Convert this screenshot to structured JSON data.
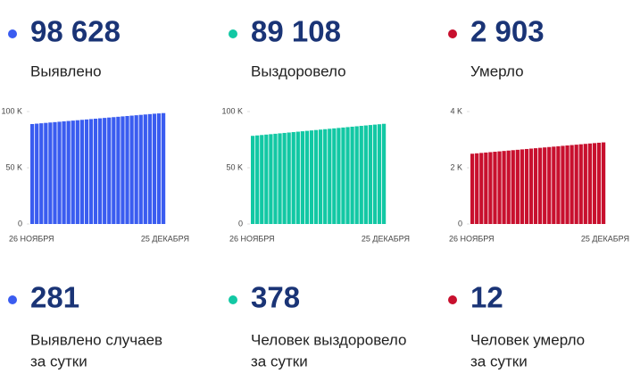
{
  "summary": [
    {
      "value": "98 628",
      "label": "Выявлено",
      "color": "#3a5cf0"
    },
    {
      "value": "89 108",
      "label": "Выздоровело",
      "color": "#12c8a4"
    },
    {
      "value": "2 903",
      "label": "Умерло",
      "color": "#c8102e"
    }
  ],
  "chart_data": [
    {
      "type": "bar",
      "color": "#3a5cf0",
      "categories": [
        "26 НОЯБРЯ",
        null,
        null,
        null,
        null,
        null,
        null,
        null,
        null,
        null,
        null,
        null,
        null,
        null,
        null,
        null,
        null,
        null,
        null,
        null,
        null,
        null,
        null,
        null,
        null,
        null,
        null,
        null,
        null,
        "25 ДЕКАБРЯ"
      ],
      "values": [
        88900,
        89240,
        89580,
        89920,
        90260,
        90600,
        90940,
        91280,
        91620,
        91960,
        92300,
        92640,
        92980,
        93320,
        93660,
        94000,
        94340,
        94680,
        95020,
        95360,
        95700,
        96040,
        96380,
        96720,
        97060,
        97400,
        97740,
        98080,
        98347,
        98628
      ],
      "ylim": [
        0,
        100000
      ],
      "yticks": [
        0,
        {
          "value": 50000,
          "label": "50 K"
        },
        {
          "value": 100000,
          "label": "100 K"
        }
      ]
    },
    {
      "type": "bar",
      "color": "#12c8a4",
      "categories": [
        "26 НОЯБРЯ",
        null,
        null,
        null,
        null,
        null,
        null,
        null,
        null,
        null,
        null,
        null,
        null,
        null,
        null,
        null,
        null,
        null,
        null,
        null,
        null,
        null,
        null,
        null,
        null,
        null,
        null,
        null,
        null,
        "25 ДЕКАБРЯ"
      ],
      "values": [
        78400,
        78770,
        79140,
        79510,
        79880,
        80250,
        80620,
        80990,
        81360,
        81730,
        82100,
        82470,
        82840,
        83210,
        83580,
        83950,
        84320,
        84690,
        85060,
        85430,
        85800,
        86170,
        86540,
        86910,
        87280,
        87650,
        88020,
        88390,
        88730,
        89108
      ],
      "ylim": [
        0,
        100000
      ],
      "yticks": [
        0,
        {
          "value": 50000,
          "label": "50 K"
        },
        {
          "value": 100000,
          "label": "100 K"
        }
      ]
    },
    {
      "type": "bar",
      "color": "#c8102e",
      "categories": [
        "26 НОЯБРЯ",
        null,
        null,
        null,
        null,
        null,
        null,
        null,
        null,
        null,
        null,
        null,
        null,
        null,
        null,
        null,
        null,
        null,
        null,
        null,
        null,
        null,
        null,
        null,
        null,
        null,
        null,
        null,
        null,
        "25 ДЕКАБРЯ"
      ],
      "values": [
        2500,
        2514,
        2528,
        2542,
        2556,
        2570,
        2584,
        2598,
        2612,
        2626,
        2640,
        2654,
        2668,
        2682,
        2696,
        2710,
        2724,
        2738,
        2752,
        2766,
        2780,
        2794,
        2808,
        2822,
        2836,
        2850,
        2864,
        2878,
        2891,
        2903
      ],
      "ylim": [
        0,
        4000
      ],
      "yticks": [
        0,
        {
          "value": 2000,
          "label": "2 K"
        },
        {
          "value": 4000,
          "label": "4 K"
        }
      ]
    }
  ],
  "daily": [
    {
      "value": "281",
      "label": [
        "Выявлено случаев",
        "за сутки"
      ],
      "color": "#3a5cf0"
    },
    {
      "value": "378",
      "label": [
        "Человек выздоровело",
        "за сутки"
      ],
      "color": "#12c8a4"
    },
    {
      "value": "12",
      "label": [
        "Человек умерло",
        "за сутки"
      ],
      "color": "#c8102e"
    }
  ]
}
